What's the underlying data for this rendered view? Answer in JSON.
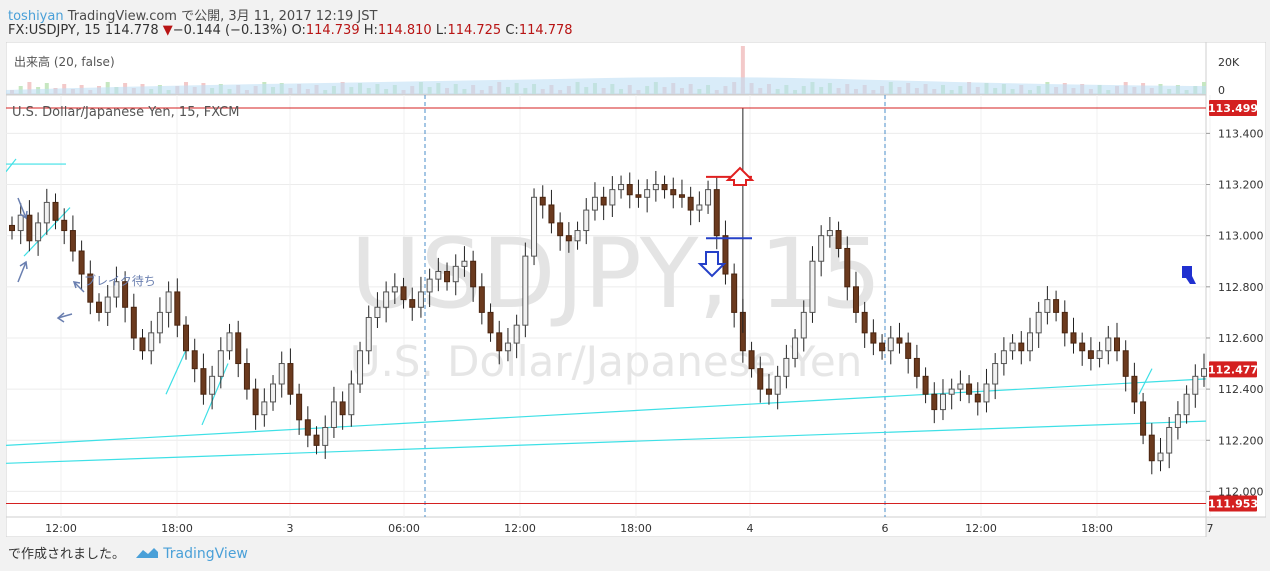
{
  "header": {
    "author": "toshiyan",
    "published": "TradingView.com で公開, 3月 11, 2017 12:19 JST",
    "symbol": "FX:USDJPY, 15",
    "last": "114.778",
    "change_arrow": "▼",
    "change": "−0.144 (−0.13%)",
    "o_label": "O:",
    "o_value": "114.739",
    "h_label": "H:",
    "h_value": "114.810",
    "l_label": "L:",
    "l_value": "114.725",
    "c_label": "C:",
    "c_value": "114.778"
  },
  "volume_pane": {
    "label": "出来高 (20, false)",
    "axis_label": "20K",
    "axis_label2": "0"
  },
  "chart_data": {
    "type": "candlestick",
    "title": "U.S. Dollar/Japanese Yen, 15, FXCM",
    "watermark_symbol": "USDJPY, 15",
    "watermark_name": "U.S. Dollar/Japanese Yen",
    "ylim": [
      111.9,
      113.55
    ],
    "y_ticks": [
      "113.400",
      "113.200",
      "113.000",
      "112.800",
      "112.600",
      "112.400",
      "112.200",
      "112.000"
    ],
    "x_ticks": [
      "12:00",
      "18:00",
      "3",
      "06:00",
      "12:00",
      "18:00",
      "4",
      "6",
      "12:00",
      "18:00",
      "7"
    ],
    "price_tags": [
      {
        "label": "113.499",
        "value": 113.499,
        "color": "#d42020"
      },
      {
        "label": "112.477",
        "value": 112.477,
        "color": "#d42020"
      },
      {
        "label": "111.953",
        "value": 111.953,
        "color": "#d42020"
      }
    ],
    "horizontal_lines": [
      113.499,
      111.953
    ],
    "annotation": "ブレイク待ち",
    "series": [
      {
        "values": [
          113.02,
          113.08,
          112.98,
          113.05,
          113.13,
          113.06,
          113.02,
          112.94,
          112.85,
          112.74,
          112.7,
          112.76,
          112.82,
          112.72,
          112.6,
          112.55,
          112.62,
          112.7,
          112.78,
          112.65,
          112.55,
          112.48,
          112.38,
          112.45,
          112.55,
          112.62,
          112.5,
          112.4,
          112.3,
          112.35,
          112.42,
          112.5,
          112.38,
          112.28,
          112.22,
          112.18,
          112.25,
          112.35,
          112.3,
          112.42,
          112.55,
          112.68,
          112.72,
          112.78,
          112.8,
          112.75,
          112.72,
          112.78,
          112.83,
          112.86,
          112.82,
          112.88,
          112.9,
          112.8,
          112.7,
          112.62,
          112.55,
          112.58,
          112.65,
          112.92,
          113.15,
          113.12,
          113.05,
          113.0,
          112.98,
          113.02,
          113.1,
          113.15,
          113.12,
          113.18,
          113.2,
          113.16,
          113.15,
          113.18,
          113.2,
          113.18,
          113.16,
          113.15,
          113.1,
          113.12,
          113.18,
          113.0,
          112.85,
          112.7,
          112.55,
          112.48,
          112.4,
          112.38,
          112.45,
          112.52,
          112.6,
          112.7,
          112.9,
          113.0,
          113.02,
          112.95,
          112.8,
          112.7,
          112.62,
          112.58,
          112.55,
          112.6,
          112.58,
          112.52,
          112.45,
          112.38,
          112.32,
          112.38,
          112.4,
          112.42,
          112.38,
          112.35,
          112.42,
          112.5,
          112.55,
          112.58,
          112.55,
          112.62,
          112.7,
          112.75,
          112.7,
          112.62,
          112.58,
          112.55,
          112.52,
          112.55,
          112.6,
          112.55,
          112.45,
          112.35,
          112.22,
          112.12,
          112.15,
          112.25,
          112.3,
          112.38,
          112.45,
          112.48
        ]
      }
    ],
    "xlabel": "",
    "ylabel": ""
  },
  "footer": {
    "made_with": "で作成されました。",
    "brand": "TradingView"
  }
}
